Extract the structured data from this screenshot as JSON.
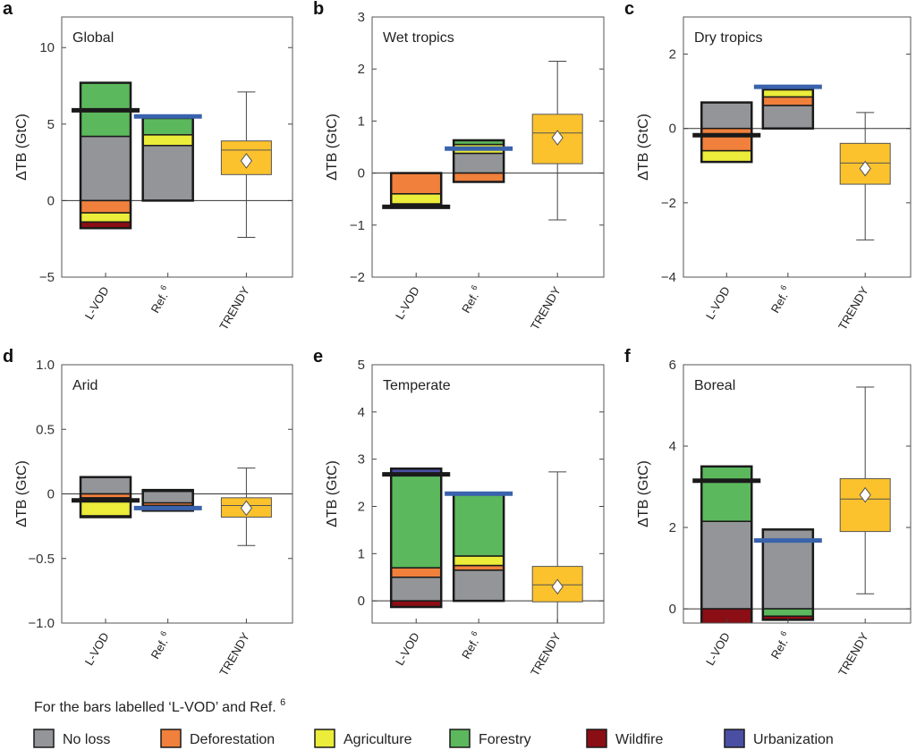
{
  "chart_data": {
    "type": "bar",
    "categories": [
      "L-VOD",
      "Ref.",
      "TRENDY"
    ],
    "category_superscripts": [
      "",
      "6",
      ""
    ],
    "ylabel": "ΔTB (GtC)",
    "colors": {
      "No loss": "#939598",
      "Deforestation": "#f0803c",
      "Agriculture": "#ecec3a",
      "Forestry": "#5cb85c",
      "Wildfire": "#8b0e15",
      "Urbanization": "#4a4fa3",
      "lvod_net": "#1a1a1a",
      "ref_net": "#3a63ad",
      "trendy": "#fbc22d"
    },
    "legend": {
      "caption": "For the bars labelled ‘L-VOD’ and Ref.",
      "caption_sup": "6",
      "items": [
        "No loss",
        "Deforestation",
        "Agriculture",
        "Forestry",
        "Wildfire",
        "Urbanization"
      ]
    },
    "panels": [
      {
        "letter": "a",
        "title": "Global",
        "ylim": [
          -5,
          12
        ],
        "yticks": [
          -5,
          0,
          5,
          10
        ],
        "lvod": {
          "segments": [
            [
              "No loss",
              0,
              4.2
            ],
            [
              "Forestry",
              4.2,
              7.7
            ],
            [
              "Deforestation",
              -0.8,
              0
            ],
            [
              "Agriculture",
              -1.4,
              -0.8
            ],
            [
              "Wildfire",
              -1.8,
              -1.4
            ]
          ],
          "net": 5.9
        },
        "ref": {
          "segments": [
            [
              "No loss",
              0,
              3.6
            ],
            [
              "Agriculture",
              3.6,
              4.3
            ],
            [
              "Forestry",
              4.3,
              5.4
            ]
          ],
          "net": 5.5
        },
        "trendy": {
          "min": -2.4,
          "q1": 1.7,
          "median": 3.3,
          "q3": 3.9,
          "max": 7.1,
          "mean": 2.6
        }
      },
      {
        "letter": "b",
        "title": "Wet tropics",
        "ylim": [
          -2,
          3
        ],
        "yticks": [
          -2,
          -1,
          0,
          1,
          2,
          3
        ],
        "lvod": {
          "segments": [
            [
              "Deforestation",
              -0.4,
              0
            ],
            [
              "Agriculture",
              -0.6,
              -0.4
            ]
          ],
          "net": -0.65
        },
        "ref": {
          "segments": [
            [
              "No loss",
              0,
              0.38
            ],
            [
              "Agriculture",
              0.38,
              0.55
            ],
            [
              "Forestry",
              0.55,
              0.63
            ],
            [
              "Deforestation",
              -0.17,
              0
            ]
          ],
          "net": 0.47
        },
        "trendy": {
          "min": -0.9,
          "q1": 0.18,
          "median": 0.77,
          "q3": 1.13,
          "max": 2.15,
          "mean": 0.68
        }
      },
      {
        "letter": "c",
        "title": "Dry tropics",
        "ylim": [
          -4,
          3
        ],
        "yticks": [
          -4,
          -2,
          0,
          2
        ],
        "lvod": {
          "segments": [
            [
              "No loss",
              0,
              0.7
            ],
            [
              "Deforestation",
              -0.6,
              0
            ],
            [
              "Agriculture",
              -0.9,
              -0.6
            ]
          ],
          "net": -0.18
        },
        "ref": {
          "segments": [
            [
              "No loss",
              0,
              0.62
            ],
            [
              "Deforestation",
              0.62,
              0.85
            ],
            [
              "Agriculture",
              0.85,
              1.05
            ]
          ],
          "net": 1.12
        },
        "trendy": {
          "min": -3.0,
          "q1": -1.5,
          "median": -0.93,
          "q3": -0.4,
          "max": 0.43,
          "mean": -1.08
        }
      },
      {
        "letter": "d",
        "title": "Arid",
        "ylim": [
          -1,
          1
        ],
        "yticks": [
          -1.0,
          -0.5,
          0,
          0.5,
          1.0
        ],
        "ytick_labels": [
          "−1.0",
          "−0.5",
          "0",
          "0.5",
          "1.0"
        ],
        "lvod": {
          "segments": [
            [
              "No loss",
              0,
              0.13
            ],
            [
              "Deforestation",
              -0.03,
              0
            ],
            [
              "Agriculture",
              -0.17,
              -0.05
            ],
            [
              "Wildfire",
              -0.18,
              -0.17
            ]
          ],
          "net": -0.05
        },
        "ref": {
          "segments": [
            [
              "No loss",
              -0.07,
              0.02
            ],
            [
              "Agriculture",
              0.02,
              0.03
            ],
            [
              "Deforestation",
              -0.09,
              -0.07
            ],
            [
              "No loss",
              -0.13,
              -0.09
            ]
          ],
          "net": -0.11
        },
        "trendy": {
          "min": -0.4,
          "q1": -0.18,
          "median": -0.09,
          "q3": -0.03,
          "max": 0.2,
          "mean": -0.11
        }
      },
      {
        "letter": "e",
        "title": "Temperate",
        "ylim": [
          -0.47,
          5
        ],
        "yticks": [
          0,
          1,
          2,
          3,
          4,
          5
        ],
        "lvod": {
          "segments": [
            [
              "No loss",
              0,
              0.5
            ],
            [
              "Deforestation",
              0.5,
              0.7
            ],
            [
              "Forestry",
              0.7,
              2.7
            ],
            [
              "Urbanization",
              2.7,
              2.8
            ],
            [
              "Wildfire",
              -0.13,
              0
            ]
          ],
          "net": 2.68
        },
        "ref": {
          "segments": [
            [
              "No loss",
              0,
              0.65
            ],
            [
              "Deforestation",
              0.65,
              0.75
            ],
            [
              "Agriculture",
              0.75,
              0.95
            ],
            [
              "Forestry",
              0.95,
              2.25
            ]
          ],
          "net": 2.27
        },
        "trendy": {
          "min": -0.6,
          "q1": -0.02,
          "median": 0.34,
          "q3": 0.73,
          "max": 2.73,
          "mean": 0.3
        }
      },
      {
        "letter": "f",
        "title": "Boreal",
        "ylim": [
          -0.35,
          6
        ],
        "yticks": [
          0,
          2,
          4,
          6
        ],
        "lvod": {
          "segments": [
            [
              "No loss",
              0,
              2.15
            ],
            [
              "Forestry",
              2.15,
              3.5
            ],
            [
              "Wildfire",
              -0.4,
              0
            ]
          ],
          "net": 3.15
        },
        "ref": {
          "segments": [
            [
              "No loss",
              0,
              1.95
            ],
            [
              "Forestry",
              -0.18,
              0
            ],
            [
              "Wildfire",
              -0.27,
              -0.18
            ]
          ],
          "net": 1.68
        },
        "trendy": {
          "min": 0.37,
          "q1": 1.9,
          "median": 2.7,
          "q3": 3.2,
          "max": 5.45,
          "mean": 2.8
        }
      }
    ]
  }
}
